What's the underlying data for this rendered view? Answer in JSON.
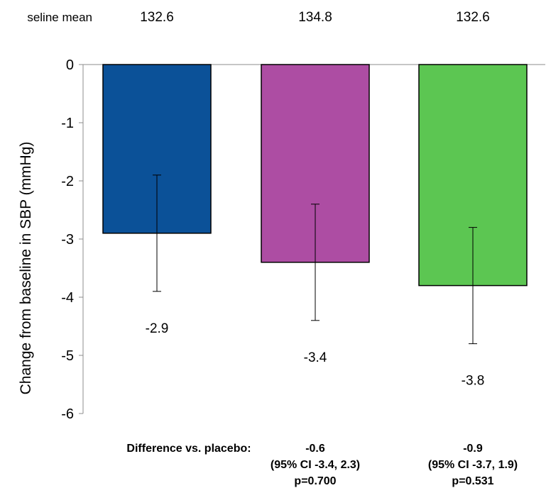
{
  "chart_data": {
    "type": "bar",
    "title": "",
    "xlabel": "",
    "ylabel": "Change from baseline in SBP (mmHg)",
    "ylim": [
      -6,
      0
    ],
    "yticks": [
      "0",
      "-1",
      "-2",
      "-3",
      "-4",
      "-5",
      "-6"
    ],
    "ytick_values": [
      0,
      -1,
      -2,
      -3,
      -4,
      -5,
      -6
    ],
    "grid": false,
    "baseline": {
      "label": "seline mean",
      "values": [
        "132.6",
        "134.8",
        "132.6"
      ]
    },
    "bars": [
      {
        "value": -2.9,
        "label": "-2.9",
        "err_low": -3.9,
        "err_high": -1.9,
        "color": "#0b5198"
      },
      {
        "value": -3.4,
        "label": "-3.4",
        "err_low": -4.4,
        "err_high": -2.4,
        "color": "#ad4da3"
      },
      {
        "value": -3.8,
        "label": "-3.8",
        "err_low": -4.8,
        "err_high": -2.8,
        "color": "#5cc652"
      }
    ],
    "difference": {
      "label": "Difference vs. placebo:",
      "columns": [
        {
          "diff": "-0.6",
          "ci": "(95% CI -3.4, 2.3)",
          "p": "p=0.700"
        },
        {
          "diff": "-0.9",
          "ci": "(95% CI -3.7, 1.9)",
          "p": "p=0.531"
        }
      ]
    }
  }
}
